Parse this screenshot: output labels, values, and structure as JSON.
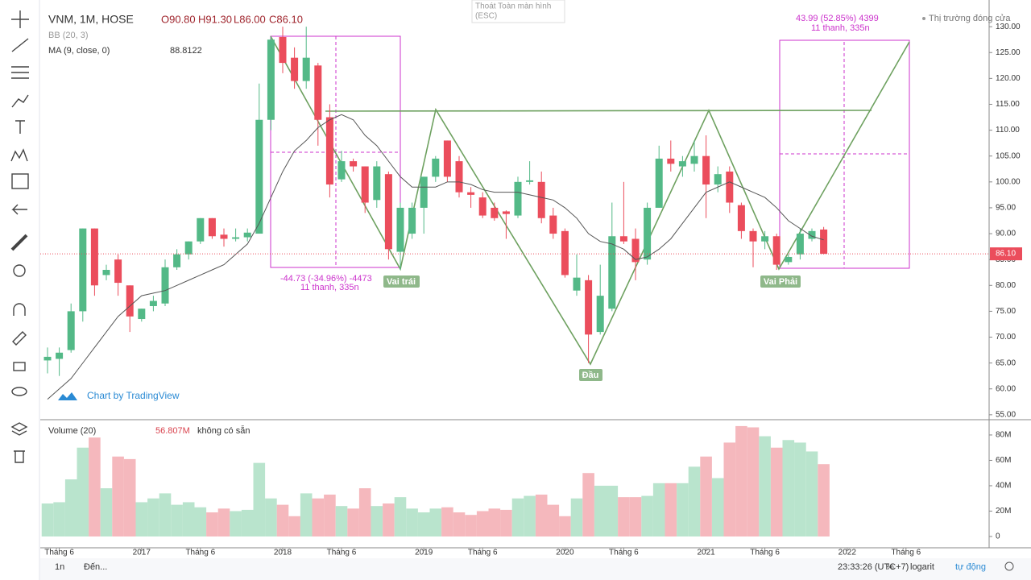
{
  "chart_data": {
    "type": "candlestick",
    "title": "VNM, 1M, HOSE",
    "ohlc_labels": [
      "O90.80",
      "H91.30",
      "L86.00",
      "C86.10"
    ],
    "categories": [
      null,
      "Tháng 6",
      null,
      null,
      null,
      null,
      null,
      null,
      "2017",
      null,
      null,
      null,
      null,
      "Tháng 6",
      null,
      null,
      null,
      null,
      null,
      null,
      "2018",
      null,
      null,
      null,
      null,
      "Tháng 6",
      null,
      null,
      null,
      null,
      null,
      null,
      "2019",
      null,
      null,
      null,
      null,
      "Tháng 6",
      null,
      null,
      null,
      null,
      null,
      null,
      "2020",
      null,
      null,
      null,
      null,
      "Tháng 6",
      null,
      null,
      null,
      null,
      null,
      null,
      "2021",
      null,
      null,
      null,
      null,
      "Tháng 6",
      null,
      null,
      null,
      null,
      null,
      null,
      "2022",
      null,
      null,
      null,
      null,
      "Tháng 6"
    ],
    "open": [
      65.5,
      65.8,
      67.5,
      75,
      91,
      82,
      85,
      80,
      73.5,
      76,
      76.5,
      83.5,
      86,
      88.5,
      93,
      89.8,
      89,
      89.3,
      90,
      112,
      128,
      124,
      119.5,
      122.5,
      112.5,
      100.5,
      104,
      103,
      96.5,
      101.5,
      86.5,
      90,
      95,
      101,
      108,
      104,
      98,
      97,
      95,
      94.3,
      93.5,
      100,
      100,
      93.5,
      90.5,
      79,
      81,
      71,
      75.5,
      89.5,
      89,
      85,
      95,
      104.5,
      103,
      103.5,
      105,
      99.5,
      102,
      95.5,
      90.5,
      88.5,
      89.5,
      84.5,
      86,
      89,
      90.8,
      null,
      null,
      null,
      null,
      null,
      null,
      null
    ],
    "high": [
      68,
      68,
      76.5,
      91,
      91,
      84,
      86,
      80,
      75.5,
      78,
      85,
      87,
      88.5,
      93,
      93,
      91,
      91,
      91,
      119,
      128,
      130,
      126,
      130,
      123,
      115,
      106,
      104.5,
      103,
      104,
      102,
      96,
      96,
      101,
      105,
      108,
      105,
      99,
      98,
      96,
      94.5,
      101,
      104,
      102,
      95,
      91,
      86,
      82,
      84,
      96,
      100,
      91,
      96,
      107,
      108,
      105,
      108,
      109,
      103,
      103,
      96,
      91,
      90.5,
      90,
      86,
      91,
      91,
      91.3,
      null,
      null,
      null,
      null,
      null,
      null,
      null
    ],
    "low": [
      63,
      62.5,
      67,
      73,
      78,
      81,
      78,
      71,
      73,
      75,
      76,
      83,
      85,
      88,
      89,
      87.5,
      88.5,
      88.5,
      90,
      110,
      121,
      118,
      118,
      107,
      97,
      100,
      102,
      94,
      95,
      85,
      83,
      89,
      90,
      100,
      100,
      97,
      95,
      93,
      92.5,
      89,
      93,
      99.5,
      92,
      89,
      81.5,
      78,
      65,
      70.5,
      75,
      88,
      81,
      84,
      95,
      102,
      101,
      102,
      93,
      98,
      94,
      89,
      83.5,
      87,
      83,
      84,
      85,
      88.5,
      86,
      null,
      null,
      null,
      null,
      null,
      null,
      null
    ],
    "close": [
      66.2,
      67,
      75,
      91,
      80,
      83,
      80.5,
      74,
      75.5,
      77,
      83.5,
      86,
      88.5,
      93,
      89.5,
      89,
      89.3,
      90.2,
      112,
      127.5,
      123,
      119.5,
      124,
      112,
      99.5,
      104,
      103,
      96,
      103,
      87,
      95,
      95,
      101,
      104.5,
      101,
      98,
      97.5,
      93.5,
      93,
      93.8,
      100,
      100.3,
      93,
      90,
      82,
      81.5,
      70.5,
      78,
      89.5,
      88.5,
      84.5,
      95,
      104.5,
      103.5,
      104,
      105,
      99.5,
      101.5,
      96,
      90.5,
      88.5,
      89.5,
      84,
      85.5,
      90,
      90.5,
      86.1,
      null,
      null,
      null,
      null,
      null,
      null,
      null
    ],
    "up_color": "#53b987",
    "down_color": "#eb4d5c",
    "ylim": [
      54.2,
      133.6
    ],
    "yticks": [
      {
        "value": 55,
        "label": "55.00"
      },
      {
        "value": 60,
        "label": "60.00"
      },
      {
        "value": 65,
        "label": "65.00"
      },
      {
        "value": 70,
        "label": "70.00"
      },
      {
        "value": 75,
        "label": "75.00"
      },
      {
        "value": 80,
        "label": "80.00"
      },
      {
        "value": 85,
        "label": "85.00"
      },
      {
        "value": 90,
        "label": "90.00"
      },
      {
        "value": 95,
        "label": "95.00"
      },
      {
        "value": 100,
        "label": "100.00"
      },
      {
        "value": 105,
        "label": "105.00"
      },
      {
        "value": 110,
        "label": "110.00"
      },
      {
        "value": 115,
        "label": "115.00"
      },
      {
        "value": 120,
        "label": "120.00"
      },
      {
        "value": 125,
        "label": "125.00"
      },
      {
        "value": 130,
        "label": "130.00"
      }
    ],
    "last_price": {
      "value": 86.1,
      "label": "86.10"
    },
    "bb": {
      "name": "BB (20, 3)"
    },
    "ma": {
      "name": "MA (9, close, 0)",
      "color": "#555555",
      "value_label": "88.8122",
      "values": [
        58,
        60,
        62,
        65,
        68,
        71,
        74,
        76,
        78,
        78.5,
        79,
        80,
        81,
        82,
        83,
        84,
        86,
        88,
        92,
        97,
        102,
        106,
        108,
        110.5,
        112,
        113,
        112,
        109,
        107,
        104,
        101,
        99,
        99,
        99,
        100,
        100,
        99.5,
        98.5,
        98,
        98,
        98,
        97.5,
        97,
        96.5,
        95,
        93,
        90,
        88.5,
        88,
        87,
        85,
        85.5,
        87,
        89,
        92,
        95,
        98,
        99,
        100,
        99,
        98,
        97,
        95,
        92.5,
        91,
        89.5,
        88.8,
        null,
        null,
        null,
        null,
        null,
        null,
        null
      ]
    },
    "volume": {
      "name": "Volume (20)",
      "value_label": "56.807M",
      "note": "không có sẵn",
      "up_color": "#b9e4cd",
      "down_color": "#f5b8bd",
      "values": [
        26,
        27,
        45,
        70,
        78,
        38,
        63,
        61,
        27,
        30,
        34,
        25,
        27,
        23,
        19,
        22,
        20,
        21,
        58,
        30,
        25,
        16,
        34,
        30,
        33,
        24,
        22,
        38,
        24,
        26,
        31,
        22,
        19,
        22,
        23,
        19,
        17,
        20,
        22,
        21,
        30,
        32,
        33,
        25,
        16,
        30,
        50,
        40,
        40,
        31,
        31,
        32,
        42,
        42,
        42,
        55,
        63,
        46,
        74,
        87,
        86,
        79,
        70,
        76,
        74,
        67,
        57,
        null,
        null,
        null,
        null,
        null,
        null,
        null
      ],
      "ylim": [
        -8.9,
        91.4
      ],
      "yticks": [
        0,
        {
          "value": 20,
          "label": "20M"
        },
        {
          "value": 40,
          "label": "40M"
        },
        {
          "value": 60,
          "label": "60M"
        },
        {
          "value": 80,
          "label": "80M"
        }
      ]
    },
    "annotations": {
      "left_measure": "-44.73 (-34.96%) -4473",
      "left_bars": "11 thanh, 335n",
      "right_measure": "43.99 (52.85%) 4399",
      "right_bars": "11 thanh, 335n",
      "market_status": "Thị trường đóng cửa",
      "left_shoulder": "Vai trái",
      "head": "Đầu",
      "right_shoulder": "Vai Phải"
    }
  },
  "ui": {
    "watermark": "Chart by TradingView",
    "fullscreen_exit": "Thoát Toàn màn hình",
    "fullscreen_key": "(ESC)",
    "interval": "1n",
    "goto": "Đến...",
    "clock": "23:33:26 (UTC+7)",
    "percent": "%",
    "log": "logarit",
    "auto": "tự động"
  }
}
